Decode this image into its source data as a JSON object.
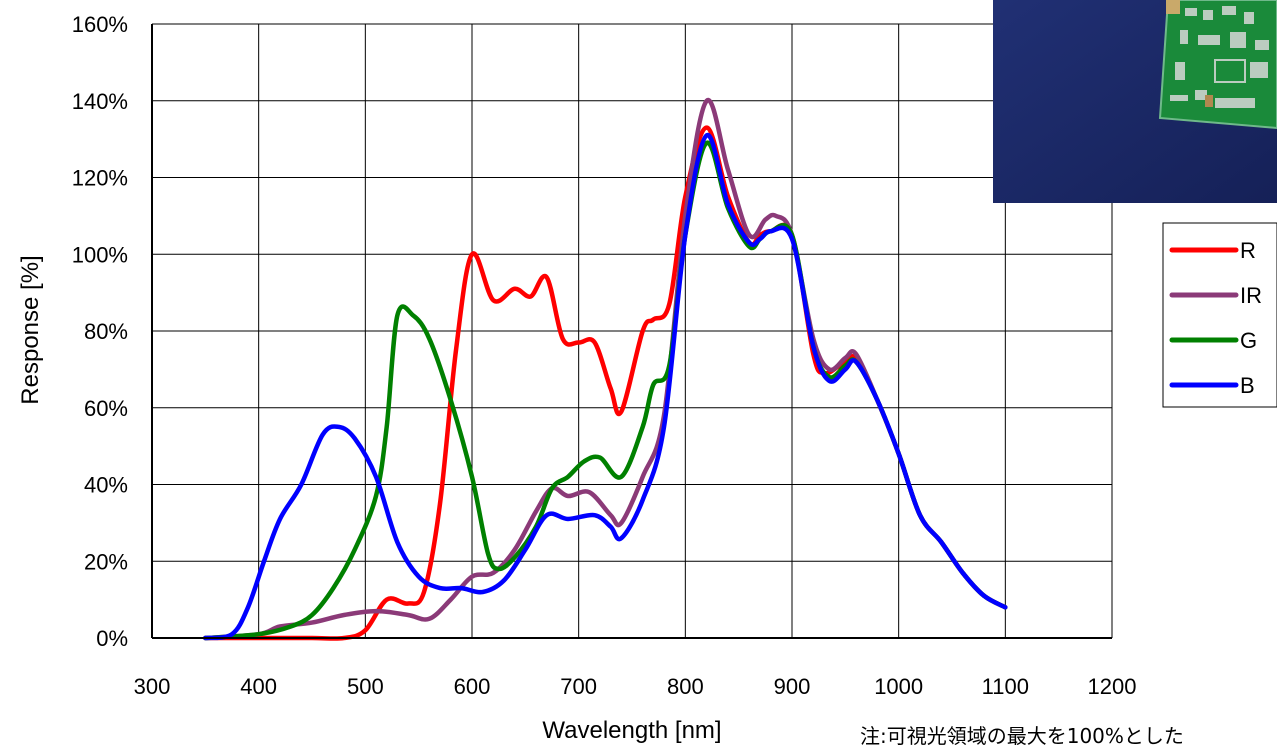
{
  "chart_data": {
    "type": "line",
    "title": "",
    "xlabel": "Wavelength [nm]",
    "ylabel": "Response [%]",
    "xlim": [
      300,
      1200
    ],
    "ylim": [
      0,
      160
    ],
    "x_ticks": [
      300,
      400,
      500,
      600,
      700,
      800,
      900,
      1000,
      1100,
      1200
    ],
    "y_ticks": [
      0,
      20,
      40,
      60,
      80,
      100,
      120,
      140,
      160
    ],
    "x_tick_labels": [
      "300",
      "400",
      "500",
      "600",
      "700",
      "800",
      "900",
      "1000",
      "1100",
      "1200"
    ],
    "y_tick_labels": [
      "0%",
      "20%",
      "40%",
      "60%",
      "80%",
      "100%",
      "120%",
      "140%",
      "160%"
    ],
    "grid": true,
    "legend_position": "right",
    "note": "注:可視光領域の最大を100%とした",
    "series": [
      {
        "name": "R",
        "color": "#ff0000",
        "points": [
          [
            350,
            0
          ],
          [
            400,
            0
          ],
          [
            450,
            0
          ],
          [
            480,
            0
          ],
          [
            500,
            2
          ],
          [
            520,
            10
          ],
          [
            540,
            9
          ],
          [
            555,
            12
          ],
          [
            570,
            35
          ],
          [
            585,
            75
          ],
          [
            600,
            100
          ],
          [
            620,
            88
          ],
          [
            640,
            91
          ],
          [
            655,
            89
          ],
          [
            670,
            94
          ],
          [
            685,
            78
          ],
          [
            700,
            77
          ],
          [
            715,
            77
          ],
          [
            730,
            65
          ],
          [
            740,
            59
          ],
          [
            760,
            80
          ],
          [
            770,
            83
          ],
          [
            785,
            87
          ],
          [
            800,
            115
          ],
          [
            820,
            133
          ],
          [
            840,
            115
          ],
          [
            860,
            103
          ],
          [
            870,
            105
          ],
          [
            880,
            106
          ],
          [
            900,
            105
          ],
          [
            920,
            74
          ],
          [
            930,
            69
          ],
          [
            945,
            71
          ],
          [
            960,
            73
          ],
          [
            980,
            62
          ],
          [
            1000,
            48
          ],
          [
            1020,
            32
          ],
          [
            1040,
            25
          ],
          [
            1060,
            17
          ],
          [
            1080,
            11
          ],
          [
            1100,
            8
          ]
        ]
      },
      {
        "name": "IR",
        "color": "#8b3a78",
        "points": [
          [
            350,
            0
          ],
          [
            400,
            1
          ],
          [
            420,
            3
          ],
          [
            450,
            4
          ],
          [
            480,
            6
          ],
          [
            510,
            7
          ],
          [
            540,
            6
          ],
          [
            560,
            5
          ],
          [
            580,
            10
          ],
          [
            600,
            16
          ],
          [
            620,
            17
          ],
          [
            640,
            23
          ],
          [
            660,
            33
          ],
          [
            675,
            39
          ],
          [
            690,
            37
          ],
          [
            710,
            38
          ],
          [
            730,
            32
          ],
          [
            740,
            30
          ],
          [
            760,
            42
          ],
          [
            780,
            58
          ],
          [
            800,
            110
          ],
          [
            820,
            140
          ],
          [
            840,
            122
          ],
          [
            860,
            105
          ],
          [
            875,
            109
          ],
          [
            885,
            110
          ],
          [
            900,
            105
          ],
          [
            920,
            78
          ],
          [
            935,
            70
          ],
          [
            950,
            73
          ],
          [
            960,
            74
          ],
          [
            980,
            62
          ],
          [
            1000,
            48
          ],
          [
            1020,
            32
          ],
          [
            1040,
            25
          ],
          [
            1060,
            17
          ],
          [
            1080,
            11
          ],
          [
            1100,
            8
          ]
        ]
      },
      {
        "name": "G",
        "color": "#008000",
        "points": [
          [
            350,
            0
          ],
          [
            400,
            1
          ],
          [
            430,
            3
          ],
          [
            450,
            6
          ],
          [
            470,
            13
          ],
          [
            490,
            23
          ],
          [
            510,
            37
          ],
          [
            520,
            55
          ],
          [
            530,
            84
          ],
          [
            545,
            84
          ],
          [
            560,
            78
          ],
          [
            580,
            62
          ],
          [
            600,
            42
          ],
          [
            615,
            22
          ],
          [
            625,
            18
          ],
          [
            640,
            21
          ],
          [
            660,
            29
          ],
          [
            675,
            39
          ],
          [
            690,
            42
          ],
          [
            705,
            46
          ],
          [
            720,
            47
          ],
          [
            740,
            42
          ],
          [
            760,
            55
          ],
          [
            770,
            66
          ],
          [
            785,
            71
          ],
          [
            800,
            105
          ],
          [
            820,
            129
          ],
          [
            840,
            112
          ],
          [
            860,
            102
          ],
          [
            870,
            104
          ],
          [
            880,
            106
          ],
          [
            900,
            105
          ],
          [
            920,
            76
          ],
          [
            935,
            68
          ],
          [
            950,
            71
          ],
          [
            960,
            72
          ],
          [
            980,
            62
          ],
          [
            1000,
            48
          ],
          [
            1020,
            32
          ],
          [
            1040,
            25
          ],
          [
            1060,
            17
          ],
          [
            1080,
            11
          ],
          [
            1100,
            8
          ]
        ]
      },
      {
        "name": "B",
        "color": "#0000ff",
        "points": [
          [
            350,
            0
          ],
          [
            375,
            1
          ],
          [
            390,
            8
          ],
          [
            405,
            20
          ],
          [
            420,
            31
          ],
          [
            440,
            40
          ],
          [
            460,
            53
          ],
          [
            475,
            55
          ],
          [
            490,
            52
          ],
          [
            510,
            42
          ],
          [
            530,
            25
          ],
          [
            550,
            16
          ],
          [
            570,
            13
          ],
          [
            590,
            13
          ],
          [
            610,
            12
          ],
          [
            630,
            15
          ],
          [
            650,
            23
          ],
          [
            670,
            32
          ],
          [
            690,
            31
          ],
          [
            715,
            32
          ],
          [
            730,
            29
          ],
          [
            740,
            26
          ],
          [
            760,
            36
          ],
          [
            780,
            55
          ],
          [
            800,
            105
          ],
          [
            820,
            131
          ],
          [
            840,
            113
          ],
          [
            860,
            103
          ],
          [
            870,
            104
          ],
          [
            880,
            106
          ],
          [
            900,
            104
          ],
          [
            920,
            76
          ],
          [
            935,
            67
          ],
          [
            950,
            70
          ],
          [
            960,
            72
          ],
          [
            980,
            62
          ],
          [
            1000,
            48
          ],
          [
            1020,
            32
          ],
          [
            1040,
            25
          ],
          [
            1060,
            17
          ],
          [
            1080,
            11
          ],
          [
            1100,
            8
          ]
        ]
      }
    ]
  },
  "inset_photo": {
    "description_icon": "circuit-board-photo",
    "board_color": "#1a8a3a",
    "background_color": "#1b2a6b"
  }
}
